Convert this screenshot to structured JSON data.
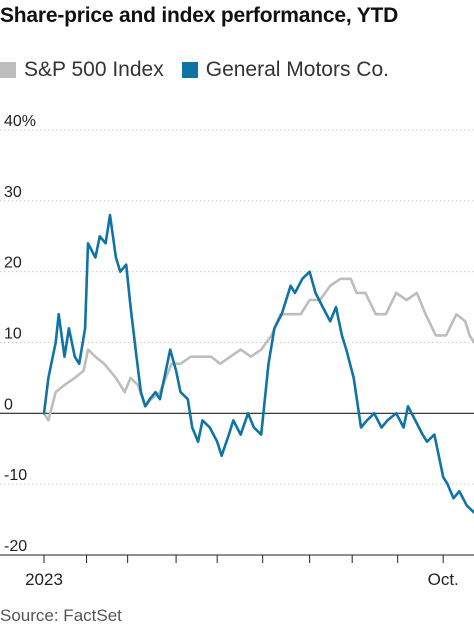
{
  "title": "Share-price and index performance, YTD",
  "legend": [
    {
      "label": "S&P 500 Index",
      "color": "#bdbdbd"
    },
    {
      "label": "General Motors Co.",
      "color": "#0f73a6"
    }
  ],
  "source": "Source: FactSet",
  "chart_data": {
    "type": "line",
    "title": "Share-price and index performance, YTD",
    "xlabel": "",
    "ylabel": "",
    "xlim": [
      "2023-01-03",
      "2023-10-23"
    ],
    "ylim": [
      -20,
      40
    ],
    "yticks": [
      -20,
      -10,
      0,
      10,
      20,
      30,
      40
    ],
    "ytick_labels": [
      "-20",
      "-10",
      "0",
      "10",
      "20",
      "30",
      "40%"
    ],
    "xtick_labels": [
      {
        "date": "2023-01-03",
        "label": "2023"
      },
      {
        "date": "2023-10-02",
        "label": "Oct."
      }
    ],
    "month_ticks": [
      "2023-01-03",
      "2023-02-01",
      "2023-03-01",
      "2023-04-03",
      "2023-05-01",
      "2023-06-01",
      "2023-07-03",
      "2023-08-01",
      "2023-09-01",
      "2023-10-02"
    ],
    "grid": true,
    "legend_position": "top-left",
    "series": [
      {
        "name": "S&P 500 Index",
        "color": "#bdbdbd",
        "points": [
          [
            "2023-01-03",
            0
          ],
          [
            "2023-01-06",
            -1
          ],
          [
            "2023-01-11",
            3
          ],
          [
            "2023-01-17",
            4
          ],
          [
            "2023-01-24",
            5
          ],
          [
            "2023-01-30",
            6
          ],
          [
            "2023-02-02",
            9
          ],
          [
            "2023-02-07",
            8
          ],
          [
            "2023-02-13",
            7
          ],
          [
            "2023-02-21",
            5
          ],
          [
            "2023-02-27",
            3
          ],
          [
            "2023-03-03",
            5
          ],
          [
            "2023-03-08",
            4
          ],
          [
            "2023-03-13",
            1
          ],
          [
            "2023-03-17",
            2
          ],
          [
            "2023-03-23",
            3
          ],
          [
            "2023-03-31",
            7
          ],
          [
            "2023-04-06",
            7
          ],
          [
            "2023-04-13",
            8
          ],
          [
            "2023-04-20",
            8
          ],
          [
            "2023-04-27",
            8
          ],
          [
            "2023-05-03",
            7
          ],
          [
            "2023-05-10",
            8
          ],
          [
            "2023-05-17",
            9
          ],
          [
            "2023-05-24",
            8
          ],
          [
            "2023-05-31",
            9
          ],
          [
            "2023-06-07",
            11
          ],
          [
            "2023-06-13",
            14
          ],
          [
            "2023-06-20",
            14
          ],
          [
            "2023-06-27",
            14
          ],
          [
            "2023-07-03",
            16
          ],
          [
            "2023-07-10",
            16
          ],
          [
            "2023-07-17",
            18
          ],
          [
            "2023-07-24",
            19
          ],
          [
            "2023-07-31",
            19
          ],
          [
            "2023-08-04",
            17
          ],
          [
            "2023-08-10",
            17
          ],
          [
            "2023-08-17",
            14
          ],
          [
            "2023-08-24",
            14
          ],
          [
            "2023-08-31",
            17
          ],
          [
            "2023-09-07",
            16
          ],
          [
            "2023-09-14",
            17
          ],
          [
            "2023-09-20",
            14
          ],
          [
            "2023-09-27",
            11
          ],
          [
            "2023-10-04",
            11
          ],
          [
            "2023-10-11",
            14
          ],
          [
            "2023-10-17",
            13
          ],
          [
            "2023-10-20",
            11
          ],
          [
            "2023-10-23",
            10
          ]
        ]
      },
      {
        "name": "General Motors Co.",
        "color": "#0f73a6",
        "points": [
          [
            "2023-01-03",
            0
          ],
          [
            "2023-01-06",
            5
          ],
          [
            "2023-01-11",
            10
          ],
          [
            "2023-01-13",
            14
          ],
          [
            "2023-01-17",
            8
          ],
          [
            "2023-01-20",
            12
          ],
          [
            "2023-01-24",
            8
          ],
          [
            "2023-01-27",
            7
          ],
          [
            "2023-01-31",
            12
          ],
          [
            "2023-02-02",
            24
          ],
          [
            "2023-02-07",
            22
          ],
          [
            "2023-02-10",
            25
          ],
          [
            "2023-02-14",
            24
          ],
          [
            "2023-02-17",
            28
          ],
          [
            "2023-02-21",
            22
          ],
          [
            "2023-02-24",
            20
          ],
          [
            "2023-02-28",
            21
          ],
          [
            "2023-03-03",
            15
          ],
          [
            "2023-03-07",
            8
          ],
          [
            "2023-03-10",
            3
          ],
          [
            "2023-03-13",
            1
          ],
          [
            "2023-03-16",
            2
          ],
          [
            "2023-03-20",
            3
          ],
          [
            "2023-03-23",
            2
          ],
          [
            "2023-03-27",
            6
          ],
          [
            "2023-03-30",
            9
          ],
          [
            "2023-04-03",
            6
          ],
          [
            "2023-04-06",
            3
          ],
          [
            "2023-04-11",
            2
          ],
          [
            "2023-04-14",
            -2
          ],
          [
            "2023-04-18",
            -4
          ],
          [
            "2023-04-21",
            -1
          ],
          [
            "2023-04-26",
            -2
          ],
          [
            "2023-05-01",
            -4
          ],
          [
            "2023-05-04",
            -6
          ],
          [
            "2023-05-09",
            -3
          ],
          [
            "2023-05-12",
            -1
          ],
          [
            "2023-05-17",
            -3
          ],
          [
            "2023-05-22",
            0
          ],
          [
            "2023-05-26",
            -2
          ],
          [
            "2023-05-31",
            -3
          ],
          [
            "2023-06-05",
            7
          ],
          [
            "2023-06-09",
            12
          ],
          [
            "2023-06-14",
            14
          ],
          [
            "2023-06-20",
            18
          ],
          [
            "2023-06-23",
            17
          ],
          [
            "2023-06-28",
            19
          ],
          [
            "2023-07-03",
            20
          ],
          [
            "2023-07-07",
            17
          ],
          [
            "2023-07-12",
            15
          ],
          [
            "2023-07-17",
            13
          ],
          [
            "2023-07-21",
            15
          ],
          [
            "2023-07-25",
            11
          ],
          [
            "2023-07-28",
            9
          ],
          [
            "2023-08-02",
            5
          ],
          [
            "2023-08-07",
            -2
          ],
          [
            "2023-08-11",
            -1
          ],
          [
            "2023-08-16",
            0
          ],
          [
            "2023-08-21",
            -2
          ],
          [
            "2023-08-25",
            -1
          ],
          [
            "2023-08-31",
            0
          ],
          [
            "2023-09-05",
            -2
          ],
          [
            "2023-09-08",
            1
          ],
          [
            "2023-09-13",
            -1
          ],
          [
            "2023-09-18",
            -3
          ],
          [
            "2023-09-21",
            -4
          ],
          [
            "2023-09-26",
            -3
          ],
          [
            "2023-10-02",
            -9
          ],
          [
            "2023-10-05",
            -10
          ],
          [
            "2023-10-09",
            -12
          ],
          [
            "2023-10-13",
            -11
          ],
          [
            "2023-10-18",
            -13
          ],
          [
            "2023-10-23",
            -14
          ]
        ]
      }
    ]
  }
}
